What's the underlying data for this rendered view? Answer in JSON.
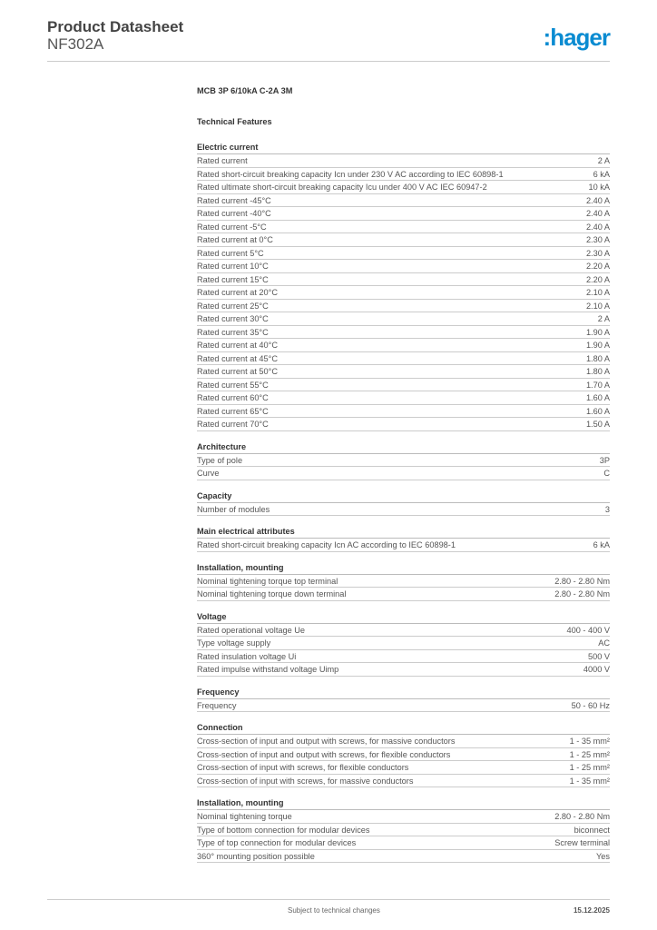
{
  "header": {
    "title": "Product Datasheet",
    "code": "NF302A",
    "logo": ":hager",
    "logo_color": "#0a8bd1"
  },
  "product_name": "MCB 3P 6/10kA C-2A 3M",
  "features_title": "Technical Features",
  "sections": [
    {
      "title": "Electric current",
      "rows": [
        [
          "Rated current",
          "2 A"
        ],
        [
          "Rated short-circuit breaking capacity Icn under 230 V AC according to IEC 60898-1",
          "6 kA"
        ],
        [
          "Rated ultimate short-circuit breaking capacity Icu under 400 V AC IEC 60947-2",
          "10 kA"
        ],
        [
          "Rated current -45°C",
          "2.40 A"
        ],
        [
          "Rated current -40°C",
          "2.40 A"
        ],
        [
          "Rated current -5°C",
          "2.40 A"
        ],
        [
          "Rated current at 0°C",
          "2.30 A"
        ],
        [
          "Rated current 5°C",
          "2.30 A"
        ],
        [
          "Rated current 10°C",
          "2.20 A"
        ],
        [
          "Rated current 15°C",
          "2.20 A"
        ],
        [
          "Rated current at 20°C",
          "2.10 A"
        ],
        [
          "Rated current 25°C",
          "2.10 A"
        ],
        [
          "Rated current 30°C",
          "2 A"
        ],
        [
          "Rated current 35°C",
          "1.90 A"
        ],
        [
          "Rated current at 40°C",
          "1.90 A"
        ],
        [
          "Rated current at 45°C",
          "1.80 A"
        ],
        [
          "Rated current at 50°C",
          "1.80 A"
        ],
        [
          "Rated current 55°C",
          "1.70 A"
        ],
        [
          "Rated current 60°C",
          "1.60 A"
        ],
        [
          "Rated current 65°C",
          "1.60 A"
        ],
        [
          "Rated current 70°C",
          "1.50 A"
        ]
      ]
    },
    {
      "title": "Architecture",
      "rows": [
        [
          "Type of pole",
          "3P"
        ],
        [
          "Curve",
          "C"
        ]
      ]
    },
    {
      "title": "Capacity",
      "rows": [
        [
          "Number of modules",
          "3"
        ]
      ]
    },
    {
      "title": "Main electrical attributes",
      "rows": [
        [
          "Rated short-circuit breaking capacity Icn AC according to IEC 60898-1",
          "6 kA"
        ]
      ]
    },
    {
      "title": "Installation, mounting",
      "rows": [
        [
          "Nominal tightening torque top terminal",
          "2.80 - 2.80 Nm"
        ],
        [
          "Nominal tightening torque down terminal",
          "2.80 - 2.80 Nm"
        ]
      ]
    },
    {
      "title": "Voltage",
      "rows": [
        [
          "Rated operational voltage Ue",
          "400 - 400 V"
        ],
        [
          "Type voltage supply",
          "AC"
        ],
        [
          "Rated insulation voltage Ui",
          "500 V"
        ],
        [
          "Rated impulse withstand voltage Uimp",
          "4000 V"
        ]
      ]
    },
    {
      "title": "Frequency",
      "rows": [
        [
          "Frequency",
          "50 - 60 Hz"
        ]
      ]
    },
    {
      "title": "Connection",
      "rows": [
        [
          "Cross-section of input and output with screws, for massive conductors",
          "1 - 35 mm²"
        ],
        [
          "Cross-section of input and output with screws, for flexible conductors",
          "1 - 25 mm²"
        ],
        [
          "Cross-section of input with screws, for flexible conductors",
          "1 - 25 mm²"
        ],
        [
          "Cross-section of input with screws, for massive conductors",
          "1 - 35 mm²"
        ]
      ]
    },
    {
      "title": "Installation, mounting",
      "rows": [
        [
          "Nominal tightening torque",
          "2.80 - 2.80 Nm"
        ],
        [
          "Type of bottom connection for modular devices",
          "biconnect"
        ],
        [
          "Type of top connection for modular devices",
          "Screw terminal"
        ],
        [
          "360° mounting position possible",
          "Yes"
        ]
      ]
    }
  ],
  "footer": {
    "note": "Subject to technical changes",
    "date": "15.12.2025"
  }
}
